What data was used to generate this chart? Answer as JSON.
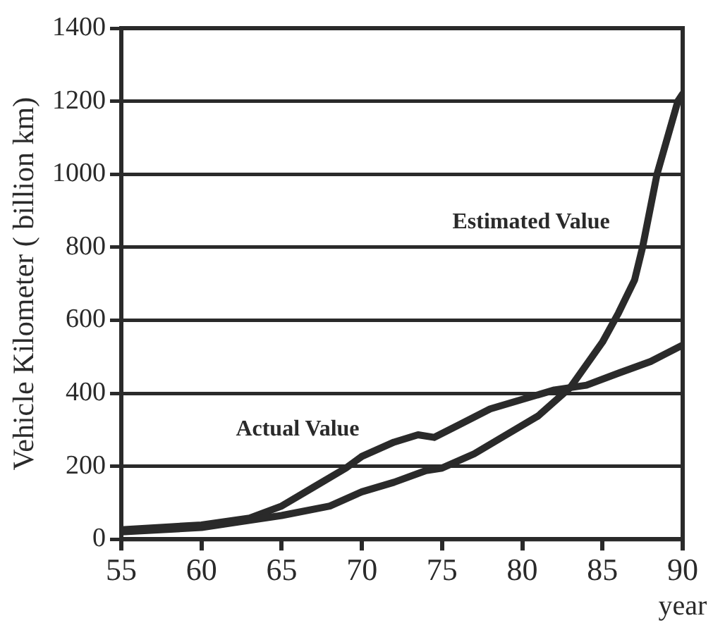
{
  "chart_data": {
    "type": "line",
    "xlabel": "year",
    "ylabel": "Vehicle Kilometer ( billion km)",
    "xlim": [
      55,
      90
    ],
    "xticks": [
      55,
      60,
      65,
      70,
      75,
      80,
      85,
      90
    ],
    "ylim": [
      0,
      1400
    ],
    "yticks": [
      0,
      200,
      400,
      600,
      800,
      1000,
      1200,
      1400
    ],
    "grid": "y",
    "legend": false,
    "marker": "none",
    "line_style": "solid",
    "series": [
      {
        "name": "Estimated Value",
        "color": "#2a2a2a",
        "x": [
          55,
          60,
          63,
          65,
          68,
          70,
          72,
          74,
          75,
          77,
          79,
          81,
          83,
          85,
          86,
          87,
          87.5,
          88.4,
          89.7,
          90
        ],
        "values": [
          20,
          32,
          52,
          65,
          91,
          130,
          156,
          188,
          195,
          234,
          286,
          338,
          416,
          540,
          620,
          710,
          800,
          1000,
          1200,
          1220
        ]
      },
      {
        "name": "Actual Value",
        "color": "#2a2a2a",
        "x": [
          55,
          60,
          63,
          65,
          67,
          69,
          70,
          72,
          73.5,
          74.5,
          76,
          78,
          80,
          82,
          84,
          86,
          88,
          90
        ],
        "values": [
          26,
          39,
          58,
          91,
          143,
          195,
          227,
          266,
          286,
          279,
          312,
          357,
          383,
          409,
          422,
          455,
          487,
          532
        ]
      }
    ]
  }
}
